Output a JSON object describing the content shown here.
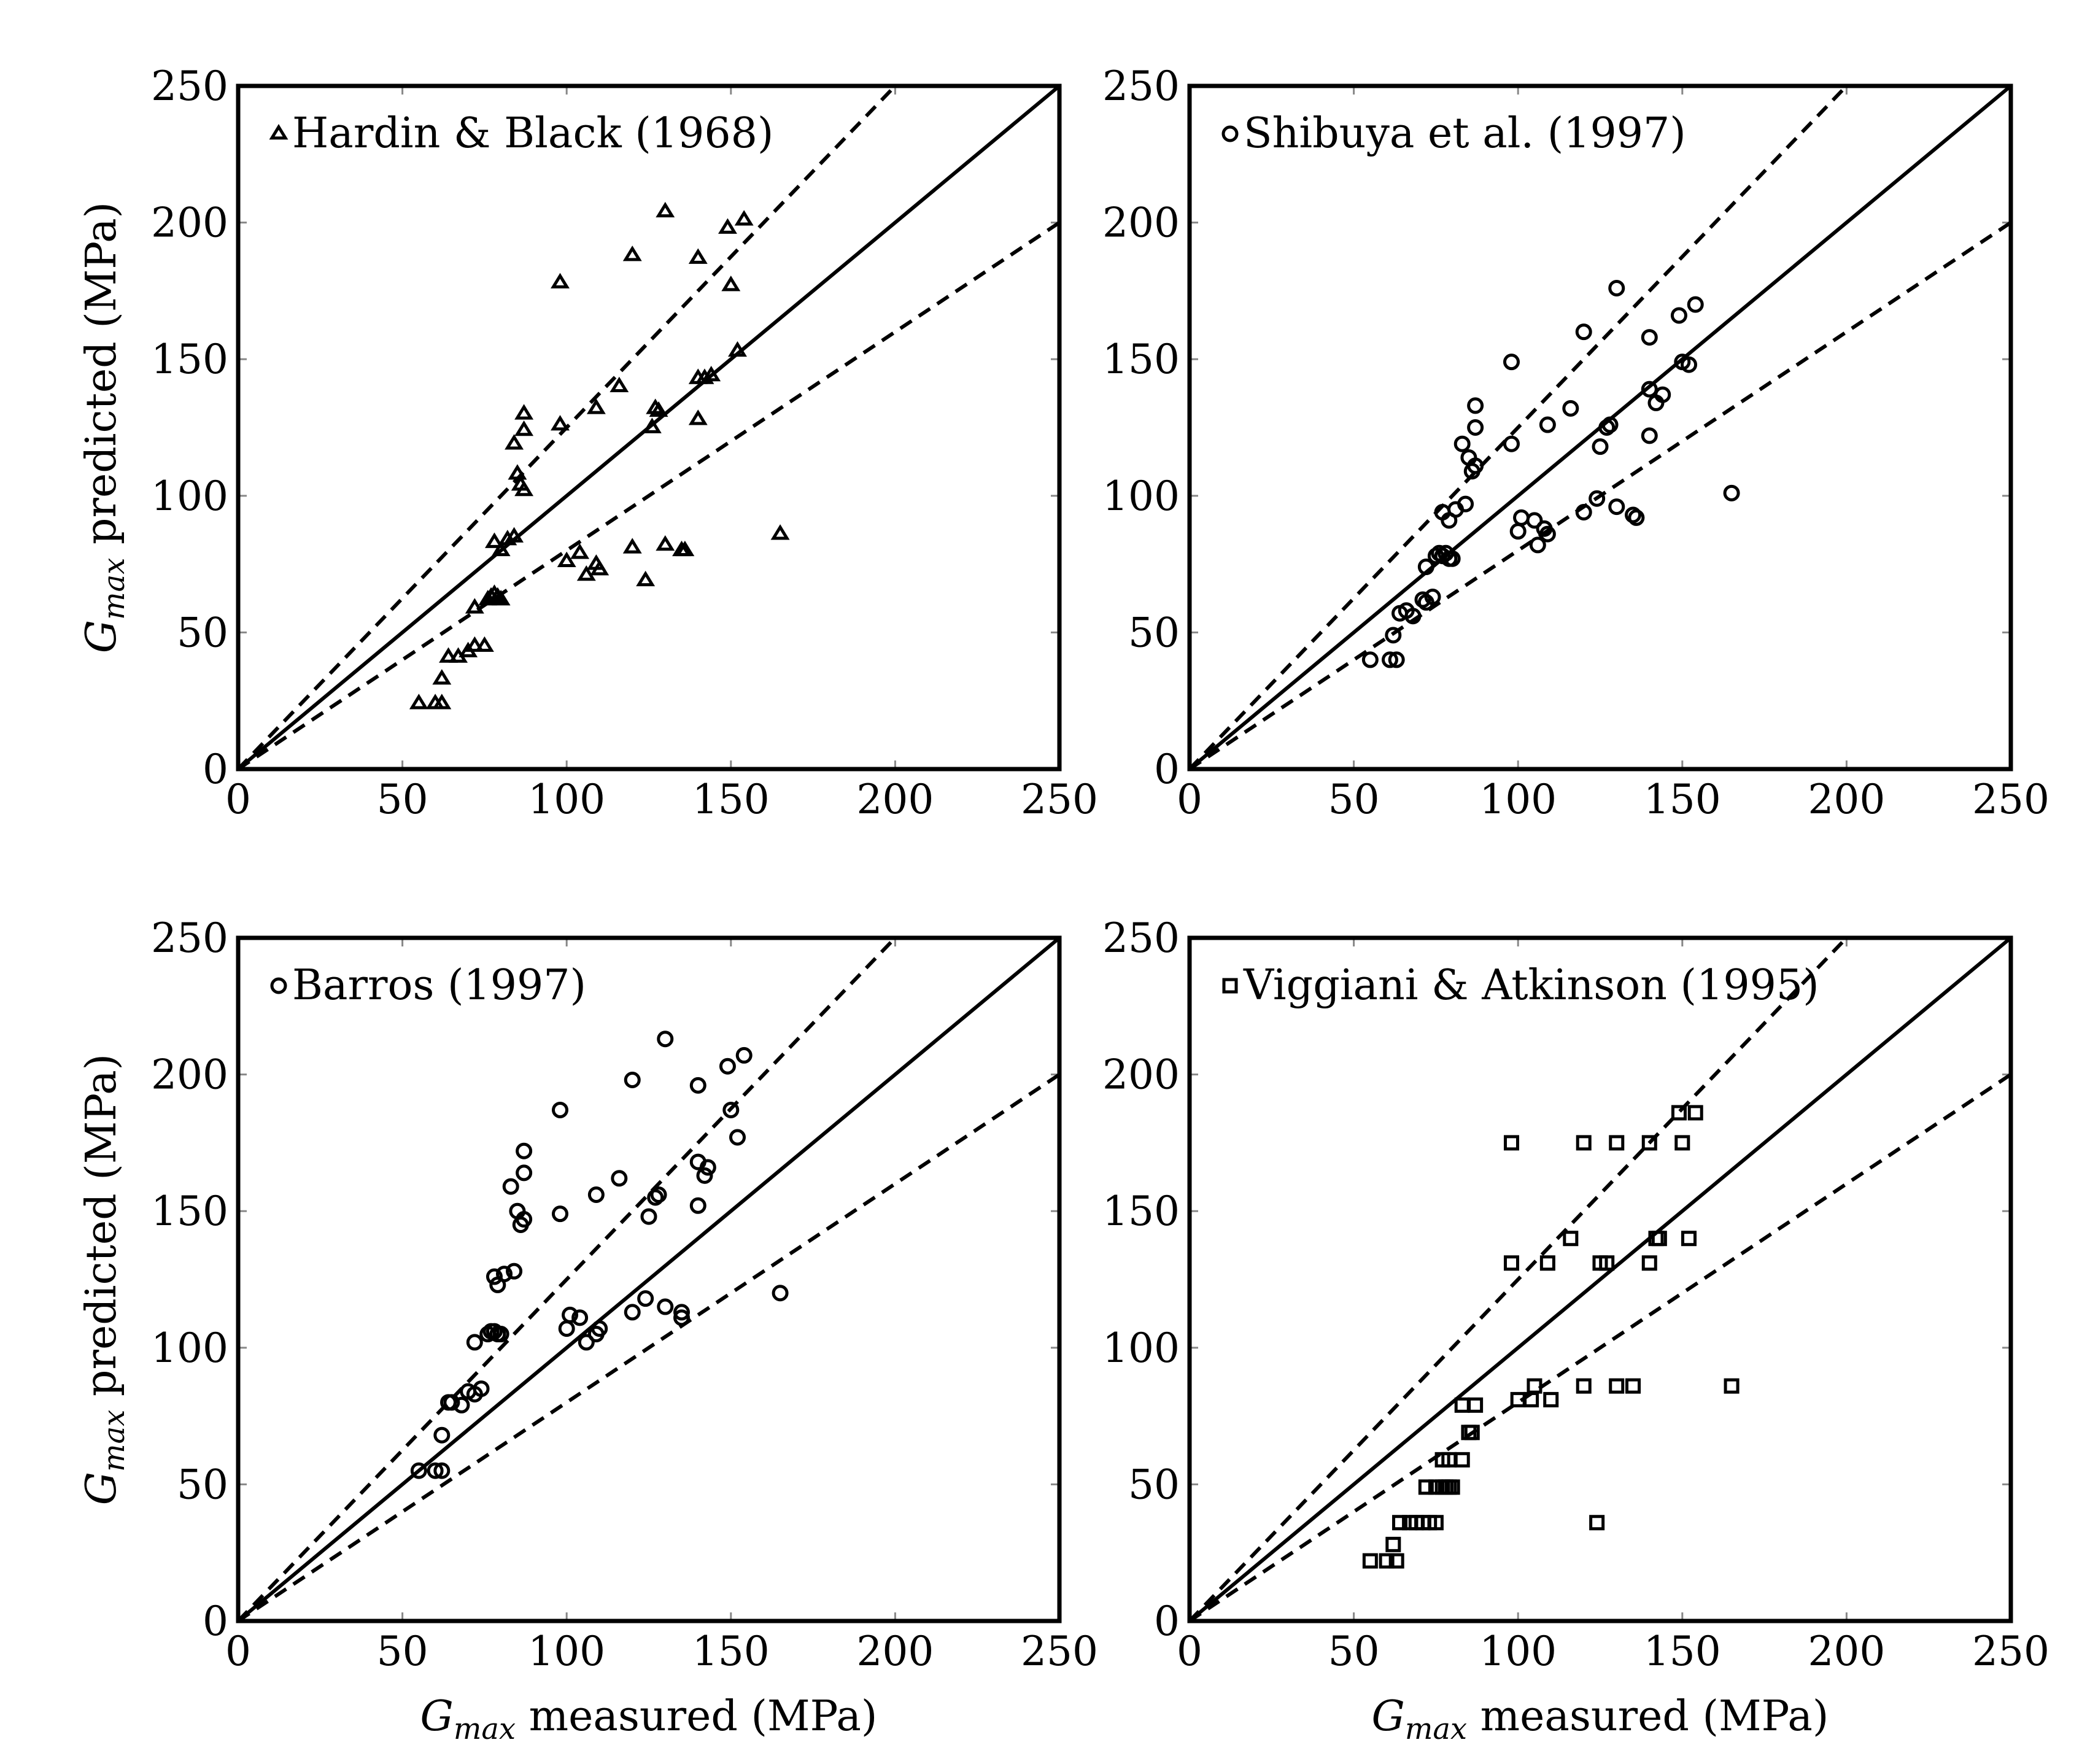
{
  "chart_data": [
    {
      "type": "scatter",
      "marker": "triangle",
      "legend": "Hardin & Black (1968)",
      "xlabel": "",
      "ylabel": "G_max predicted (MPa)",
      "xlim": [
        0,
        250
      ],
      "ylim": [
        0,
        250
      ],
      "xticks": [
        "0",
        "50",
        "100",
        "150",
        "200",
        "250"
      ],
      "yticks": [
        "0",
        "50",
        "100",
        "150",
        "200",
        "250"
      ],
      "reference_lines": {
        "identity_slope": 1.0,
        "upper_slope": 1.25,
        "lower_slope": 0.8
      },
      "points": [
        [
          55,
          24
        ],
        [
          60,
          24
        ],
        [
          62,
          24
        ],
        [
          62,
          33
        ],
        [
          64,
          41
        ],
        [
          67,
          41
        ],
        [
          70,
          43
        ],
        [
          72,
          45
        ],
        [
          75,
          45
        ],
        [
          72,
          59
        ],
        [
          76,
          62
        ],
        [
          77,
          63
        ],
        [
          78,
          64
        ],
        [
          79,
          63
        ],
        [
          80,
          62
        ],
        [
          78,
          83
        ],
        [
          80,
          80
        ],
        [
          82,
          84
        ],
        [
          84,
          85
        ],
        [
          86,
          104
        ],
        [
          85,
          108
        ],
        [
          87,
          102
        ],
        [
          87,
          124
        ],
        [
          87,
          130
        ],
        [
          84,
          119
        ],
        [
          98,
          178
        ],
        [
          98,
          126
        ],
        [
          100,
          76
        ],
        [
          104,
          79
        ],
        [
          106,
          71
        ],
        [
          109,
          75
        ],
        [
          110,
          73
        ],
        [
          109,
          132
        ],
        [
          116,
          140
        ],
        [
          120,
          81
        ],
        [
          120,
          188
        ],
        [
          124,
          69
        ],
        [
          126,
          125
        ],
        [
          127,
          132
        ],
        [
          128,
          131
        ],
        [
          130,
          82
        ],
        [
          130,
          204
        ],
        [
          135,
          80
        ],
        [
          136,
          80
        ],
        [
          140,
          187
        ],
        [
          140,
          143
        ],
        [
          140,
          128
        ],
        [
          142,
          143
        ],
        [
          144,
          144
        ],
        [
          149,
          198
        ],
        [
          150,
          177
        ],
        [
          152,
          153
        ],
        [
          154,
          201
        ],
        [
          165,
          86
        ]
      ]
    },
    {
      "type": "scatter",
      "marker": "circle",
      "legend": "Shibuya et al. (1997)",
      "xlabel": "",
      "ylabel": "",
      "xlim": [
        0,
        250
      ],
      "ylim": [
        0,
        250
      ],
      "xticks": [
        "0",
        "50",
        "100",
        "150",
        "200",
        "250"
      ],
      "yticks": [
        "0",
        "50",
        "100",
        "150",
        "200",
        "250"
      ],
      "reference_lines": {
        "identity_slope": 1.0,
        "upper_slope": 1.25,
        "lower_slope": 0.8
      },
      "points": [
        [
          55,
          40
        ],
        [
          61,
          40
        ],
        [
          63,
          40
        ],
        [
          62,
          49
        ],
        [
          64,
          57
        ],
        [
          66,
          58
        ],
        [
          68,
          56
        ],
        [
          71,
          62
        ],
        [
          72,
          61
        ],
        [
          72,
          74
        ],
        [
          74,
          63
        ],
        [
          75,
          78
        ],
        [
          76,
          79
        ],
        [
          77,
          78
        ],
        [
          78,
          79
        ],
        [
          79,
          77
        ],
        [
          80,
          77
        ],
        [
          77,
          94
        ],
        [
          79,
          91
        ],
        [
          81,
          95
        ],
        [
          84,
          97
        ],
        [
          83,
          119
        ],
        [
          85,
          114
        ],
        [
          86,
          109
        ],
        [
          87,
          111
        ],
        [
          87,
          125
        ],
        [
          87,
          133
        ],
        [
          98,
          119
        ],
        [
          98,
          149
        ],
        [
          100,
          87
        ],
        [
          101,
          92
        ],
        [
          105,
          91
        ],
        [
          106,
          82
        ],
        [
          108,
          88
        ],
        [
          109,
          86
        ],
        [
          109,
          126
        ],
        [
          116,
          132
        ],
        [
          120,
          94
        ],
        [
          120,
          160
        ],
        [
          124,
          99
        ],
        [
          125,
          118
        ],
        [
          127,
          125
        ],
        [
          128,
          126
        ],
        [
          130,
          96
        ],
        [
          130,
          176
        ],
        [
          135,
          93
        ],
        [
          136,
          92
        ],
        [
          140,
          158
        ],
        [
          140,
          139
        ],
        [
          140,
          122
        ],
        [
          142,
          134
        ],
        [
          144,
          137
        ],
        [
          149,
          166
        ],
        [
          150,
          149
        ],
        [
          152,
          148
        ],
        [
          154,
          170
        ],
        [
          165,
          101
        ]
      ]
    },
    {
      "type": "scatter",
      "marker": "circle",
      "legend": "Barros (1997)",
      "xlabel": "G_max measured (MPa)",
      "ylabel": "G_max predicted (MPa)",
      "xlim": [
        0,
        250
      ],
      "ylim": [
        0,
        250
      ],
      "xticks": [
        "0",
        "50",
        "100",
        "150",
        "200",
        "250"
      ],
      "yticks": [
        "0",
        "50",
        "100",
        "150",
        "200",
        "250"
      ],
      "reference_lines": {
        "identity_slope": 1.0,
        "upper_slope": 1.25,
        "lower_slope": 0.8
      },
      "points": [
        [
          55,
          55
        ],
        [
          60,
          55
        ],
        [
          62,
          55
        ],
        [
          62,
          68
        ],
        [
          64,
          80
        ],
        [
          65,
          80
        ],
        [
          68,
          79
        ],
        [
          70,
          84
        ],
        [
          72,
          83
        ],
        [
          72,
          102
        ],
        [
          74,
          85
        ],
        [
          76,
          105
        ],
        [
          77,
          106
        ],
        [
          78,
          106
        ],
        [
          79,
          105
        ],
        [
          80,
          105
        ],
        [
          78,
          126
        ],
        [
          79,
          123
        ],
        [
          81,
          127
        ],
        [
          84,
          128
        ],
        [
          83,
          159
        ],
        [
          85,
          150
        ],
        [
          86,
          145
        ],
        [
          87,
          147
        ],
        [
          87,
          164
        ],
        [
          87,
          172
        ],
        [
          98,
          149
        ],
        [
          98,
          187
        ],
        [
          100,
          107
        ],
        [
          101,
          112
        ],
        [
          104,
          111
        ],
        [
          106,
          102
        ],
        [
          109,
          105
        ],
        [
          110,
          107
        ],
        [
          109,
          156
        ],
        [
          116,
          162
        ],
        [
          120,
          113
        ],
        [
          120,
          198
        ],
        [
          124,
          118
        ],
        [
          125,
          148
        ],
        [
          127,
          155
        ],
        [
          128,
          156
        ],
        [
          130,
          115
        ],
        [
          130,
          213
        ],
        [
          135,
          111
        ],
        [
          135,
          113
        ],
        [
          140,
          196
        ],
        [
          140,
          168
        ],
        [
          140,
          152
        ],
        [
          142,
          163
        ],
        [
          143,
          166
        ],
        [
          149,
          203
        ],
        [
          150,
          187
        ],
        [
          152,
          177
        ],
        [
          154,
          207
        ],
        [
          165,
          120
        ]
      ]
    },
    {
      "type": "scatter",
      "marker": "square",
      "legend": "Viggiani & Atkinson (1995)",
      "xlabel": "G_max measured (MPa)",
      "ylabel": "",
      "xlim": [
        0,
        250
      ],
      "ylim": [
        0,
        250
      ],
      "xticks": [
        "0",
        "50",
        "100",
        "150",
        "200",
        "250"
      ],
      "yticks": [
        "0",
        "50",
        "100",
        "150",
        "200",
        "250"
      ],
      "reference_lines": {
        "identity_slope": 1.0,
        "upper_slope": 1.25,
        "lower_slope": 0.8
      },
      "points": [
        [
          55,
          22
        ],
        [
          60,
          22
        ],
        [
          63,
          22
        ],
        [
          62,
          28
        ],
        [
          64,
          36
        ],
        [
          67,
          36
        ],
        [
          69,
          36
        ],
        [
          71,
          36
        ],
        [
          73,
          36
        ],
        [
          75,
          36
        ],
        [
          72,
          49
        ],
        [
          75,
          49
        ],
        [
          77,
          49
        ],
        [
          78,
          49
        ],
        [
          79,
          49
        ],
        [
          80,
          49
        ],
        [
          77,
          59
        ],
        [
          79,
          59
        ],
        [
          83,
          59
        ],
        [
          85,
          69
        ],
        [
          86,
          69
        ],
        [
          83,
          79
        ],
        [
          87,
          79
        ],
        [
          98,
          131
        ],
        [
          98,
          175
        ],
        [
          100,
          81
        ],
        [
          104,
          81
        ],
        [
          105,
          86
        ],
        [
          109,
          131
        ],
        [
          110,
          81
        ],
        [
          116,
          140
        ],
        [
          120,
          86
        ],
        [
          120,
          175
        ],
        [
          124,
          36
        ],
        [
          125,
          131
        ],
        [
          127,
          131
        ],
        [
          130,
          86
        ],
        [
          130,
          175
        ],
        [
          135,
          86
        ],
        [
          140,
          131
        ],
        [
          140,
          175
        ],
        [
          142,
          140
        ],
        [
          143,
          140
        ],
        [
          149,
          186
        ],
        [
          150,
          175
        ],
        [
          152,
          140
        ],
        [
          154,
          186
        ],
        [
          165,
          86
        ]
      ]
    }
  ]
}
